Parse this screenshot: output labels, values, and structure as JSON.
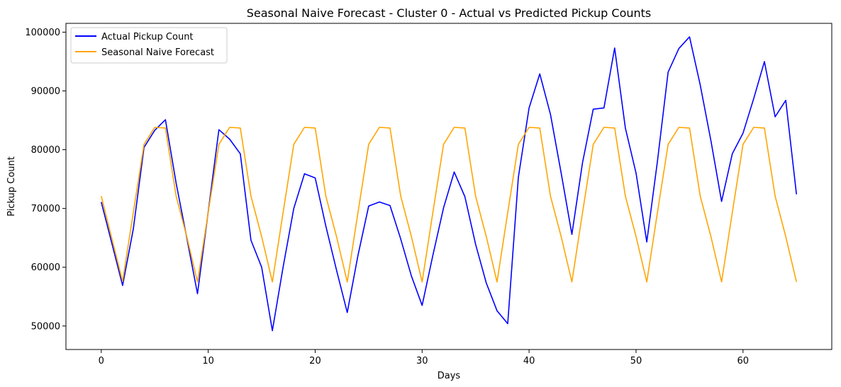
{
  "chart_data": {
    "type": "line",
    "title": "Seasonal Naive Forecast - Cluster 0 - Actual vs Predicted Pickup Counts",
    "xlabel": "Days",
    "ylabel": "Pickup Count",
    "xlim": [
      -3.3,
      68.3
    ],
    "ylim": [
      46000,
      101500
    ],
    "xticks": [
      0,
      10,
      20,
      30,
      40,
      50,
      60
    ],
    "yticks": [
      50000,
      60000,
      70000,
      80000,
      90000,
      100000
    ],
    "grid": false,
    "legend_position": "upper-left",
    "x": [
      0,
      1,
      2,
      3,
      4,
      5,
      6,
      7,
      8,
      9,
      10,
      11,
      12,
      13,
      14,
      15,
      16,
      17,
      18,
      19,
      20,
      21,
      22,
      23,
      24,
      25,
      26,
      27,
      28,
      29,
      30,
      31,
      32,
      33,
      34,
      35,
      36,
      37,
      38,
      39,
      40,
      41,
      42,
      43,
      44,
      45,
      46,
      47,
      48,
      49,
      50,
      51,
      52,
      53,
      54,
      55,
      56,
      57,
      58,
      59,
      60,
      61,
      62,
      63,
      64,
      65
    ],
    "series": [
      {
        "name": "Actual Pickup Count",
        "color": "#0000ff",
        "values": [
          71100,
          64000,
          56900,
          66500,
          80400,
          83300,
          85100,
          74300,
          65000,
          55500,
          69400,
          83400,
          81800,
          79300,
          64600,
          60000,
          49200,
          60000,
          70000,
          75900,
          75200,
          67000,
          59500,
          52300,
          62000,
          70400,
          71100,
          70500,
          64800,
          58500,
          53500,
          62000,
          70100,
          76200,
          72000,
          63900,
          57300,
          52600,
          50400,
          75300,
          87100,
          92900,
          86000,
          76000,
          65600,
          77800,
          86900,
          87100,
          97300,
          83700,
          76000,
          64300,
          78000,
          93200,
          97200,
          99200,
          91000,
          81500,
          71200,
          79300,
          82800,
          88700,
          95000,
          85600,
          88400,
          72400
        ]
      },
      {
        "name": "Seasonal Naive Forecast",
        "color": "#ffa500",
        "values": [
          72100,
          64800,
          57600,
          69300,
          80900,
          83800,
          83700,
          72100,
          65200,
          57500,
          69300,
          80900,
          83800,
          83700,
          72100,
          65200,
          57500,
          69300,
          80900,
          83800,
          83700,
          72100,
          65200,
          57500,
          69300,
          80900,
          83800,
          83700,
          72100,
          65200,
          57500,
          69300,
          80900,
          83800,
          83700,
          72100,
          65200,
          57500,
          69300,
          80900,
          83800,
          83700,
          72100,
          65200,
          57500,
          69300,
          80900,
          83800,
          83700,
          72100,
          65200,
          57500,
          69300,
          80900,
          83800,
          83700,
          72100,
          65200,
          57500,
          69300,
          80900,
          83800,
          83700,
          72100,
          65200,
          57500
        ]
      }
    ]
  }
}
